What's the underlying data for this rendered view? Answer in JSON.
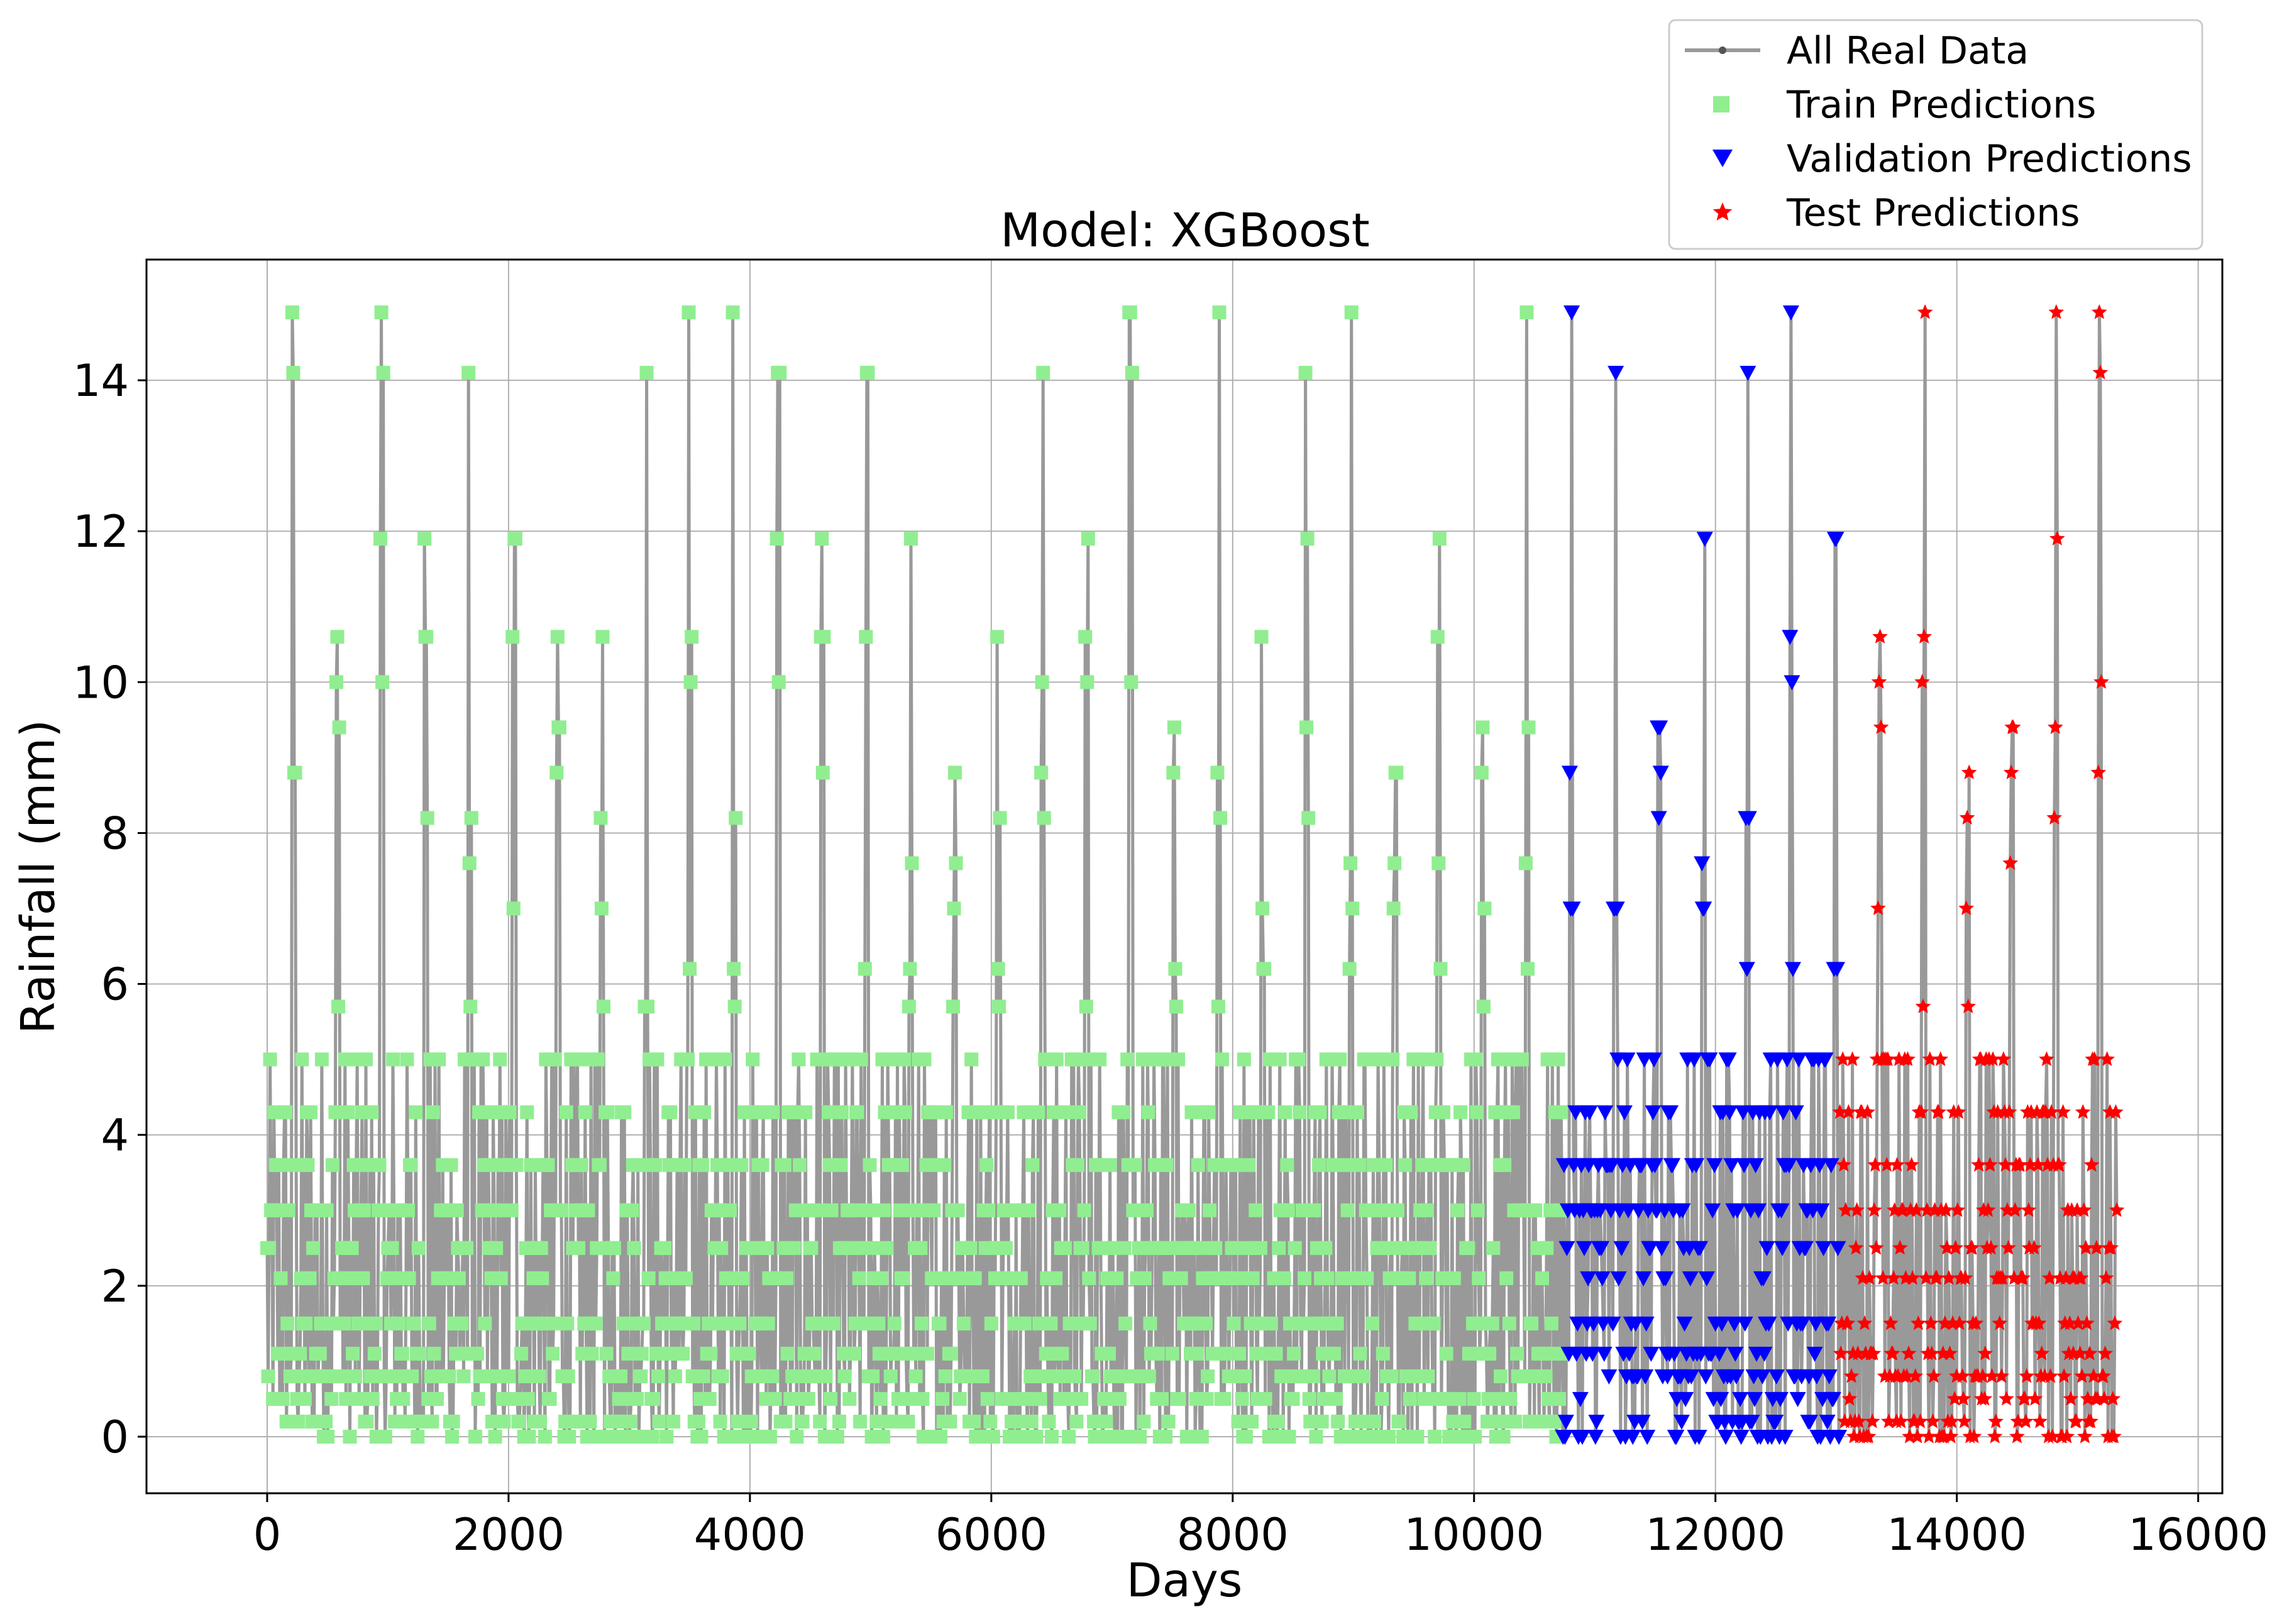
{
  "chart_data": {
    "type": "scatter",
    "title": "Model: XGBoost",
    "xlabel": "Days",
    "ylabel": "Rainfall (mm)",
    "xlim": [
      -1000,
      16200
    ],
    "ylim": [
      -0.75,
      15.6
    ],
    "xticks": [
      0,
      2000,
      4000,
      6000,
      8000,
      10000,
      12000,
      14000,
      16000
    ],
    "yticks": [
      0,
      2,
      4,
      6,
      8,
      10,
      12,
      14
    ],
    "grid": true,
    "legend_position": "upper-right-outside",
    "period_days": 365,
    "num_cycles": 42,
    "total_days": 15330,
    "split_days": {
      "train_end": 10730,
      "validation_end": 13030
    },
    "typical_cycle_values": [
      0,
      0.2,
      0.5,
      0.8,
      1.1,
      1.5,
      2.1,
      2.5,
      3.0,
      3.6,
      4.3,
      5.0,
      5.7,
      6.2,
      7.0,
      7.6,
      8.2,
      8.8,
      9.4,
      10.0,
      10.6,
      11.9,
      14.1,
      14.9
    ],
    "series": [
      {
        "name": "All Real Data",
        "marker": "line-with-dots",
        "color": "#999999",
        "dot_color": "#555555",
        "day_range": [
          0,
          15330
        ]
      },
      {
        "name": "Train Predictions",
        "marker": "square",
        "color": "#90ee90",
        "day_range": [
          0,
          10730
        ]
      },
      {
        "name": "Validation Predictions",
        "marker": "triangle-down",
        "color": "#0000ff",
        "day_range": [
          10730,
          13030
        ]
      },
      {
        "name": "Test Predictions",
        "marker": "star",
        "color": "#ff0000",
        "day_range": [
          13030,
          15330
        ]
      }
    ]
  }
}
